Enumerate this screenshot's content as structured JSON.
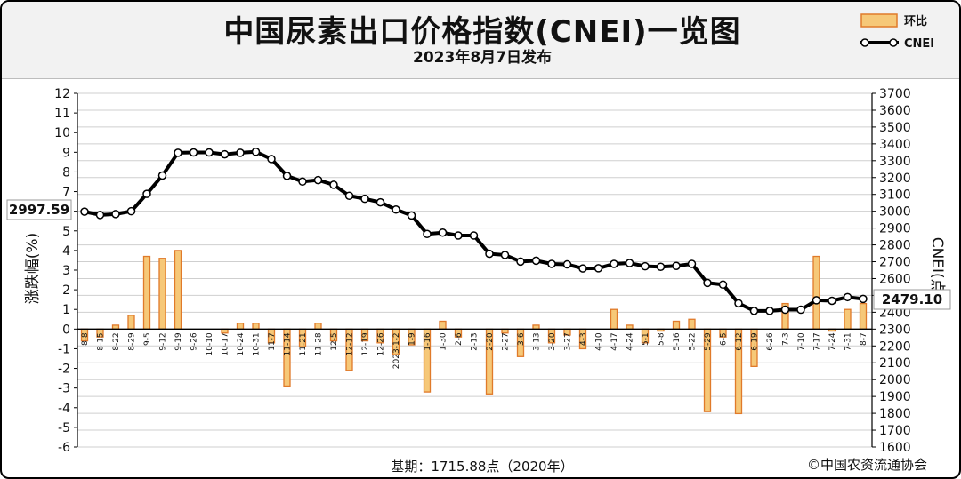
{
  "header": {
    "title": "中国尿素出口价格指数(CNEI)一览图",
    "subtitle": "2023年8月7日发布"
  },
  "legend": {
    "bar": "环比",
    "line": "CNEI"
  },
  "footer": {
    "base": "基期：1715.88点（2020年）",
    "copyright": "©中国农资流通协会"
  },
  "colors": {
    "bar_fill": "#f6c878",
    "bar_edge": "#e07a2a",
    "line": "#000000",
    "marker": "#ffffff",
    "grid": "#cfcfcf",
    "plot_bg": "#ffffff",
    "header_bg": "#f2f2f2"
  },
  "chart_data": {
    "type": "bar+line",
    "categories": [
      "8-8",
      "8-15",
      "8-22",
      "8-29",
      "9-5",
      "9-12",
      "9-19",
      "9-26",
      "10-10",
      "10-17",
      "10-24",
      "10-31",
      "11-7",
      "11-14",
      "11-21",
      "11-28",
      "12-5",
      "12-12",
      "12-19",
      "12-26",
      "2023-1-2",
      "1-9",
      "1-16",
      "1-30",
      "2-6",
      "2-13",
      "2-20",
      "2-27",
      "3-6",
      "3-13",
      "3-20",
      "3-27",
      "4-3",
      "4-10",
      "4-17",
      "4-24",
      "5-1",
      "5-8",
      "5-16",
      "5-22",
      "5-29",
      "6-5",
      "6-12",
      "6-19",
      "6-26",
      "7-3",
      "7-10",
      "7-17",
      "7-24",
      "7-31",
      "8-7"
    ],
    "series": [
      {
        "name": "环比",
        "type": "bar",
        "axis": "left",
        "values": [
          -0.6,
          -0.4,
          0.2,
          0.7,
          3.7,
          3.6,
          4.0,
          0.0,
          0.0,
          -0.2,
          0.3,
          0.3,
          -0.7,
          -2.9,
          -0.9,
          0.3,
          -0.6,
          -2.1,
          -0.6,
          -0.7,
          -1.3,
          -0.8,
          -3.2,
          0.4,
          -0.4,
          0.0,
          -3.3,
          -0.2,
          -1.4,
          0.2,
          -0.7,
          -0.3,
          -1.0,
          0.0,
          1.0,
          0.2,
          -0.7,
          -0.1,
          0.4,
          0.5,
          -4.2,
          -0.4,
          -4.3,
          -1.9,
          0.0,
          1.3,
          0.0,
          3.7,
          -0.1,
          1.0,
          1.3
        ]
      },
      {
        "name": "CNEI",
        "type": "line",
        "axis": "right",
        "values": [
          2997.59,
          2978,
          2983,
          3000,
          3103,
          3212,
          3347,
          3349,
          3349,
          3338,
          3347,
          3353,
          3310,
          3210,
          3176,
          3185,
          3157,
          3092,
          3074,
          3053,
          3010,
          2975,
          2865,
          2873,
          2856,
          2856,
          2747,
          2740,
          2701,
          2706,
          2687,
          2684,
          2660,
          2661,
          2687,
          2692,
          2673,
          2670,
          2675,
          2687,
          2574,
          2564,
          2453,
          2408,
          2408,
          2415,
          2415,
          2471,
          2468,
          2490,
          2479.1
        ]
      }
    ],
    "left_axis": {
      "label": "涨跌幅(%)",
      "min": -6,
      "max": 12,
      "step": 1
    },
    "right_axis": {
      "label": "CNEI(点)",
      "min": 1600,
      "max": 3700,
      "step": 100
    },
    "callouts": {
      "first": "2997.59",
      "last": "2479.10"
    },
    "grid": true,
    "legend_position": "top-right"
  }
}
